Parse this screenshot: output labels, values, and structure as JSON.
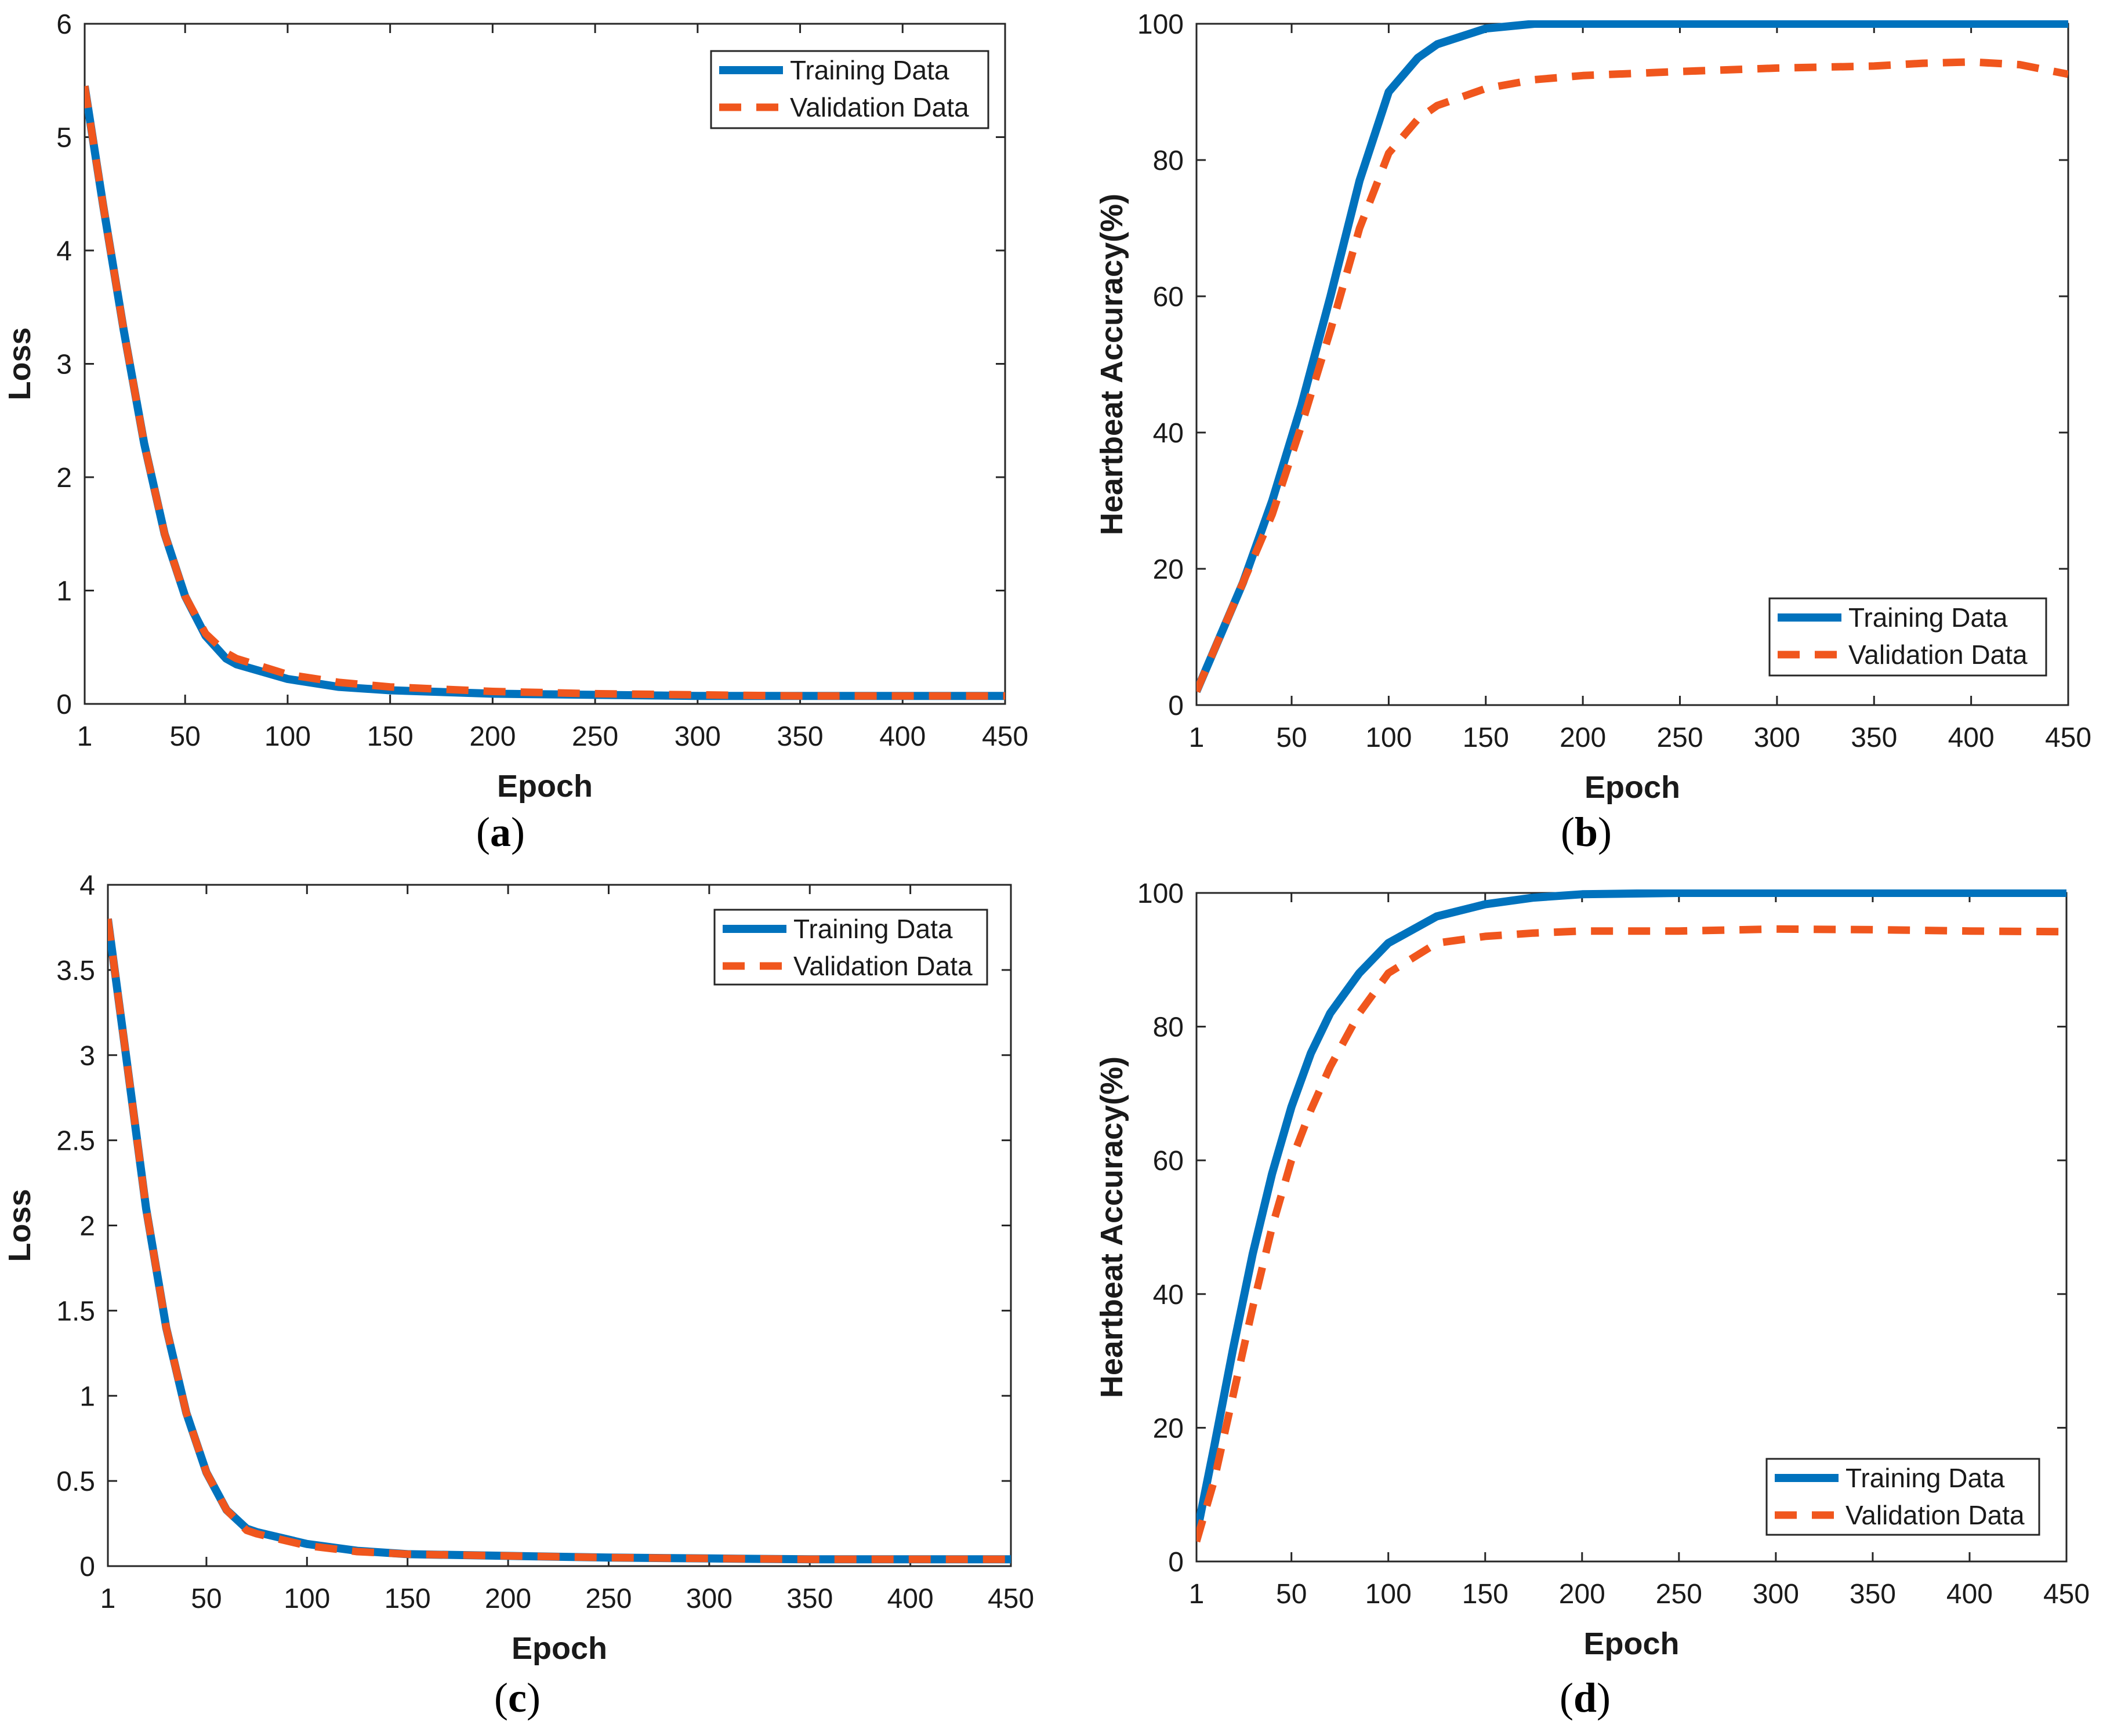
{
  "colors": {
    "training": "#0072BD",
    "validation": "#F0561D",
    "axis": "#262626"
  },
  "chart_data": [
    {
      "id": "a",
      "caption_letter": "a",
      "type": "line",
      "xlabel": "Epoch",
      "ylabel": "Loss",
      "xlim": [
        1,
        450
      ],
      "ylim": [
        0,
        6
      ],
      "xticks": [
        1,
        50,
        100,
        150,
        200,
        250,
        300,
        350,
        400,
        450
      ],
      "xtick_labels": [
        "1",
        "50",
        "100",
        "150",
        "200",
        "250",
        "300",
        "350",
        "400",
        "450"
      ],
      "yticks": [
        0,
        1,
        2,
        3,
        4,
        5,
        6
      ],
      "ytick_labels": [
        "0",
        "1",
        "2",
        "3",
        "4",
        "5",
        "6"
      ],
      "legend_position": "top-right",
      "series": [
        {
          "name": "Training Data",
          "style": "solid",
          "x": [
            1,
            10,
            20,
            30,
            40,
            50,
            60,
            70,
            75,
            100,
            125,
            150,
            200,
            250,
            300,
            350,
            400,
            450
          ],
          "y": [
            5.45,
            4.4,
            3.3,
            2.3,
            1.5,
            0.95,
            0.6,
            0.4,
            0.35,
            0.22,
            0.15,
            0.12,
            0.09,
            0.08,
            0.07,
            0.07,
            0.07,
            0.07
          ]
        },
        {
          "name": "Validation Data",
          "style": "dashed",
          "x": [
            1,
            10,
            20,
            30,
            40,
            50,
            60,
            70,
            75,
            100,
            125,
            150,
            200,
            250,
            300,
            350,
            400,
            450
          ],
          "y": [
            5.45,
            4.4,
            3.3,
            2.3,
            1.5,
            0.95,
            0.62,
            0.45,
            0.4,
            0.26,
            0.19,
            0.15,
            0.11,
            0.09,
            0.08,
            0.07,
            0.07,
            0.07
          ]
        }
      ]
    },
    {
      "id": "b",
      "caption_letter": "b",
      "type": "line",
      "xlabel": "Epoch",
      "ylabel": "Heartbeat Accuracy(%)",
      "xlim": [
        1,
        450
      ],
      "ylim": [
        0,
        100
      ],
      "xticks": [
        1,
        50,
        100,
        150,
        200,
        250,
        300,
        350,
        400,
        450
      ],
      "xtick_labels": [
        "1",
        "50",
        "100",
        "150",
        "200",
        "250",
        "300",
        "350",
        "400",
        "450"
      ],
      "yticks": [
        0,
        20,
        40,
        60,
        80,
        100
      ],
      "ytick_labels": [
        "0",
        "20",
        "40",
        "60",
        "80",
        "100"
      ],
      "legend_position": "bottom-right",
      "series": [
        {
          "name": "Training Data",
          "style": "solid",
          "x": [
            1,
            10,
            25,
            40,
            55,
            70,
            85,
            100,
            115,
            125,
            150,
            175,
            200,
            250,
            300,
            350,
            400,
            450
          ],
          "y": [
            2,
            8,
            18,
            30,
            44,
            60,
            77,
            90,
            95,
            97,
            99.3,
            100,
            100,
            100,
            100,
            100,
            100,
            100
          ]
        },
        {
          "name": "Validation Data",
          "style": "dashed",
          "x": [
            1,
            10,
            25,
            40,
            55,
            70,
            85,
            100,
            115,
            125,
            150,
            175,
            200,
            250,
            300,
            350,
            375,
            400,
            425,
            450
          ],
          "y": [
            2,
            8,
            18,
            28,
            41,
            55,
            70,
            81,
            86,
            88,
            90.5,
            91.8,
            92.4,
            93,
            93.5,
            93.8,
            94.2,
            94.4,
            94,
            92.6
          ]
        }
      ]
    },
    {
      "id": "c",
      "caption_letter": "c",
      "type": "line",
      "xlabel": "Epoch",
      "ylabel": "Loss",
      "xlim": [
        1,
        450
      ],
      "ylim": [
        0,
        4
      ],
      "xticks": [
        1,
        50,
        100,
        150,
        200,
        250,
        300,
        350,
        400,
        450
      ],
      "xtick_labels": [
        "1",
        "50",
        "100",
        "150",
        "200",
        "250",
        "300",
        "350",
        "400",
        "450"
      ],
      "yticks": [
        0,
        0.5,
        1,
        1.5,
        2,
        2.5,
        3,
        3.5,
        4
      ],
      "ytick_labels": [
        "0",
        "0.5",
        "1",
        "1.5",
        "2",
        "2.5",
        "3",
        "3.5",
        "4"
      ],
      "legend_position": "top-right",
      "series": [
        {
          "name": "Training Data",
          "style": "solid",
          "x": [
            1,
            10,
            20,
            30,
            40,
            50,
            60,
            70,
            75,
            100,
            125,
            150,
            200,
            250,
            300,
            350,
            400,
            450
          ],
          "y": [
            3.8,
            3.0,
            2.1,
            1.4,
            0.9,
            0.55,
            0.33,
            0.22,
            0.2,
            0.13,
            0.09,
            0.07,
            0.06,
            0.05,
            0.045,
            0.04,
            0.04,
            0.04
          ]
        },
        {
          "name": "Validation Data",
          "style": "dashed",
          "x": [
            1,
            10,
            20,
            30,
            40,
            50,
            60,
            70,
            75,
            100,
            125,
            150,
            200,
            250,
            300,
            350,
            400,
            450
          ],
          "y": [
            3.8,
            3.0,
            2.1,
            1.4,
            0.9,
            0.55,
            0.33,
            0.21,
            0.19,
            0.12,
            0.085,
            0.07,
            0.06,
            0.05,
            0.045,
            0.04,
            0.04,
            0.04
          ]
        }
      ]
    },
    {
      "id": "d",
      "caption_letter": "d",
      "type": "line",
      "xlabel": "Epoch",
      "ylabel": "Heartbeat Accuracy(%)",
      "xlim": [
        1,
        450
      ],
      "ylim": [
        0,
        100
      ],
      "xticks": [
        1,
        50,
        100,
        150,
        200,
        250,
        300,
        350,
        400,
        450
      ],
      "xtick_labels": [
        "1",
        "50",
        "100",
        "150",
        "200",
        "250",
        "300",
        "350",
        "400",
        "450"
      ],
      "yticks": [
        0,
        20,
        40,
        60,
        80,
        100
      ],
      "ytick_labels": [
        "0",
        "20",
        "40",
        "60",
        "80",
        "100"
      ],
      "legend_position": "bottom-right",
      "series": [
        {
          "name": "Training Data",
          "style": "solid",
          "x": [
            1,
            10,
            20,
            30,
            40,
            50,
            60,
            70,
            85,
            100,
            125,
            150,
            175,
            200,
            250,
            300,
            350,
            400,
            450
          ],
          "y": [
            4,
            17,
            32,
            46,
            58,
            68,
            76,
            82,
            88,
            92.5,
            96.5,
            98.3,
            99.3,
            99.8,
            100,
            100,
            100,
            100,
            100
          ]
        },
        {
          "name": "Validation Data",
          "style": "dashed",
          "x": [
            1,
            10,
            20,
            30,
            40,
            50,
            60,
            70,
            85,
            100,
            125,
            150,
            175,
            200,
            250,
            300,
            350,
            400,
            450
          ],
          "y": [
            3,
            12,
            25,
            38,
            50,
            60,
            67.5,
            74,
            82,
            88,
            92.5,
            93.5,
            94,
            94.3,
            94.3,
            94.6,
            94.5,
            94.3,
            94.2
          ]
        }
      ]
    }
  ]
}
